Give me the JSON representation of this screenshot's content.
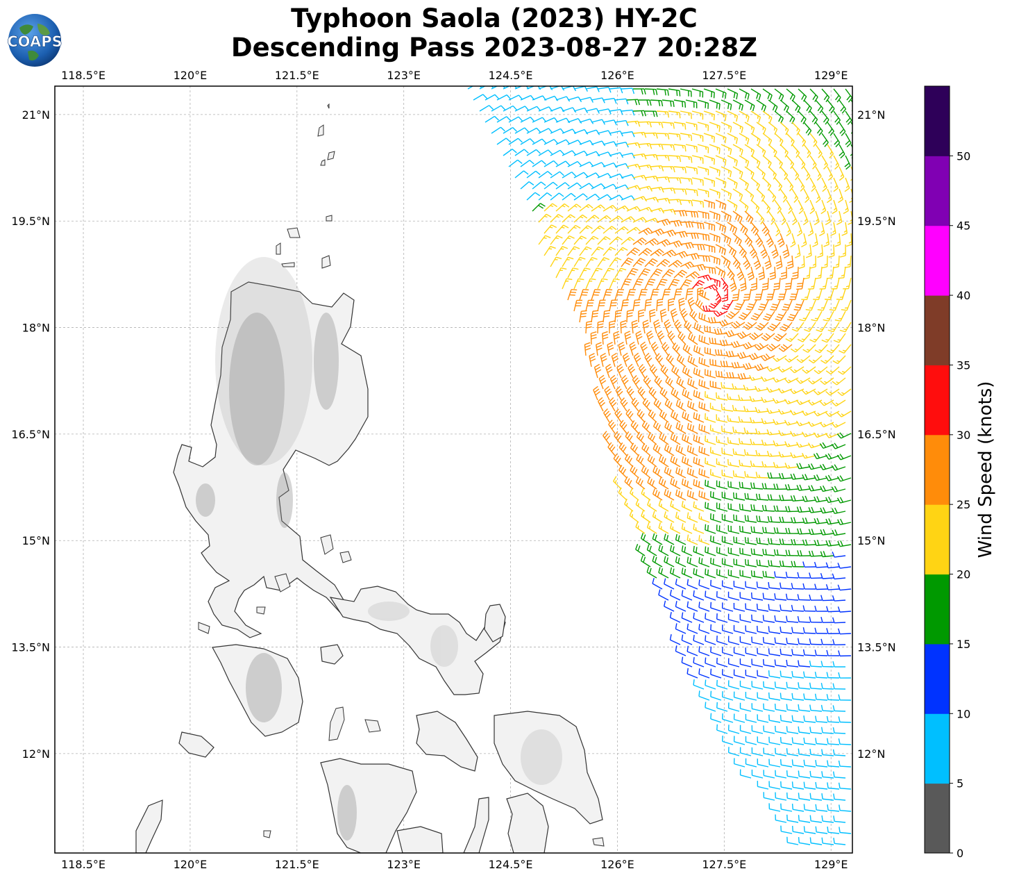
{
  "title": {
    "line1": "Typhoon Saola (2023) HY-2C",
    "line2": "Descending Pass 2023-08-27 20:28Z"
  },
  "logo": {
    "text": "COAPS",
    "icon": "globe-icon"
  },
  "map": {
    "lon_range": [
      118.1,
      129.3
    ],
    "lat_range": [
      10.6,
      21.4
    ],
    "lon_ticks": [
      118.5,
      120,
      121.5,
      123,
      124.5,
      126,
      127.5,
      129
    ],
    "lon_labels": [
      "118.5°E",
      "120°E",
      "121.5°E",
      "123°E",
      "124.5°E",
      "126°E",
      "127.5°E",
      "129°E"
    ],
    "lat_ticks": [
      21,
      19.5,
      18,
      16.5,
      15,
      13.5,
      12
    ],
    "lat_labels": [
      "21°N",
      "19.5°N",
      "18°N",
      "16.5°N",
      "15°N",
      "13.5°N",
      "12°N"
    ],
    "gridlines": true,
    "land_color": "#f4f4f4",
    "coast_color": "#333333"
  },
  "typhoon_center": {
    "lon": 127.3,
    "lat": 18.45
  },
  "colorbar": {
    "label": "Wind Speed (knots)",
    "ticks": [
      0,
      5,
      10,
      15,
      20,
      25,
      30,
      35,
      40,
      45,
      50
    ],
    "bins": [
      {
        "min": 0,
        "max": 5,
        "color": "#595959"
      },
      {
        "min": 5,
        "max": 10,
        "color": "#00bfff"
      },
      {
        "min": 10,
        "max": 15,
        "color": "#0033ff"
      },
      {
        "min": 15,
        "max": 20,
        "color": "#009900"
      },
      {
        "min": 20,
        "max": 25,
        "color": "#ffd414"
      },
      {
        "min": 25,
        "max": 30,
        "color": "#ff8c0a"
      },
      {
        "min": 30,
        "max": 35,
        "color": "#ff0d0d"
      },
      {
        "min": 35,
        "max": 40,
        "color": "#7f3c28"
      },
      {
        "min": 40,
        "max": 45,
        "color": "#ff00ff"
      },
      {
        "min": 45,
        "max": 50,
        "color": "#8000b3"
      },
      {
        "min": 50,
        "max": 55,
        "color": "#2e0059"
      }
    ]
  }
}
